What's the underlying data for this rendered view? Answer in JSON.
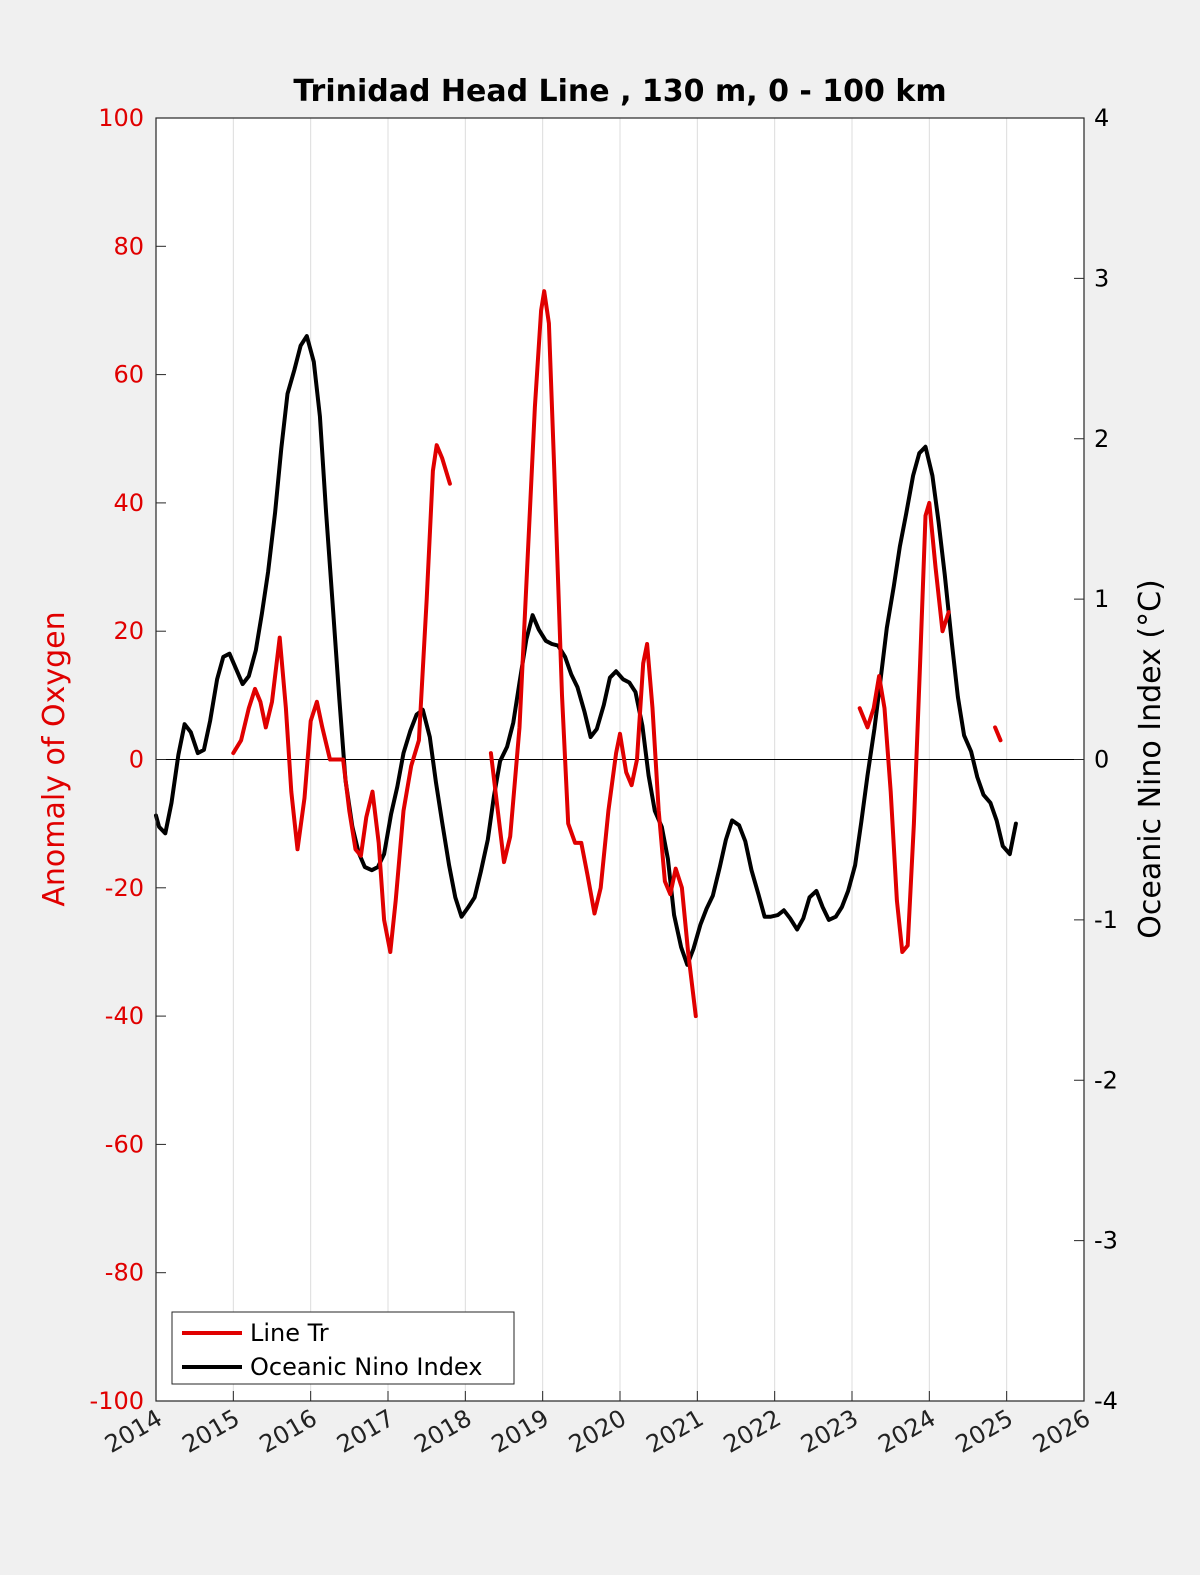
{
  "chart_data": {
    "type": "line",
    "title": "Trinidad Head Line , 130 m, 0 - 100 km",
    "xlabel": "",
    "y_left_label": "Anomaly of Oxygen",
    "y_right_label": "Oceanic Nino Index (°C)",
    "xlim": [
      2014,
      2026
    ],
    "ylim_left": [
      -100,
      100
    ],
    "ylim_right": [
      -4,
      4
    ],
    "x_ticks": [
      "2014",
      "2015",
      "2016",
      "2017",
      "2018",
      "2019",
      "2020",
      "2021",
      "2022",
      "2023",
      "2024",
      "2025",
      "2026"
    ],
    "y_left_ticks": [
      "100",
      "80",
      "60",
      "40",
      "20",
      "0",
      "-20",
      "-40",
      "-60",
      "-80",
      "-100"
    ],
    "y_right_ticks": [
      "4",
      "3",
      "2",
      "1",
      "0",
      "-1",
      "-2",
      "-3",
      "-4"
    ],
    "grid": "vertical",
    "zero_line": true,
    "legend_position": "bottom-left",
    "colors": {
      "line_tr": "#e00000",
      "oni": "#000000",
      "left_axis": "#e00000"
    },
    "series": [
      {
        "name": "Line Tr",
        "axis": "left",
        "color": "#e00000",
        "segments": [
          [
            [
              2015.0,
              1
            ],
            [
              2015.1,
              3
            ],
            [
              2015.2,
              8
            ],
            [
              2015.28,
              11
            ],
            [
              2015.35,
              9
            ],
            [
              2015.42,
              5
            ],
            [
              2015.5,
              9
            ],
            [
              2015.6,
              19
            ],
            [
              2015.68,
              8
            ],
            [
              2015.75,
              -5
            ],
            [
              2015.83,
              -14
            ],
            [
              2015.92,
              -6
            ],
            [
              2016.0,
              6
            ],
            [
              2016.08,
              9
            ],
            [
              2016.15,
              5
            ],
            [
              2016.25,
              0
            ],
            [
              2016.33,
              0
            ],
            [
              2016.42,
              0
            ],
            [
              2016.5,
              -8
            ],
            [
              2016.58,
              -14
            ],
            [
              2016.65,
              -15
            ],
            [
              2016.72,
              -9
            ],
            [
              2016.8,
              -5
            ],
            [
              2016.88,
              -13
            ],
            [
              2016.95,
              -25
            ],
            [
              2017.03,
              -30
            ],
            [
              2017.1,
              -22
            ],
            [
              2017.2,
              -8
            ],
            [
              2017.3,
              -1
            ],
            [
              2017.4,
              3
            ],
            [
              2017.5,
              25
            ],
            [
              2017.58,
              45
            ],
            [
              2017.63,
              49
            ],
            [
              2017.7,
              47
            ],
            [
              2017.8,
              43
            ]
          ],
          [
            [
              2018.33,
              1
            ],
            [
              2018.42,
              -8
            ],
            [
              2018.5,
              -16
            ],
            [
              2018.58,
              -12
            ],
            [
              2018.7,
              5
            ],
            [
              2018.8,
              30
            ],
            [
              2018.9,
              55
            ],
            [
              2018.98,
              70
            ],
            [
              2019.02,
              73
            ],
            [
              2019.08,
              68
            ],
            [
              2019.15,
              45
            ],
            [
              2019.25,
              10
            ],
            [
              2019.33,
              -10
            ],
            [
              2019.42,
              -13
            ],
            [
              2019.5,
              -13
            ],
            [
              2019.58,
              -18
            ],
            [
              2019.67,
              -24
            ],
            [
              2019.75,
              -20
            ],
            [
              2019.85,
              -8
            ],
            [
              2019.95,
              1
            ],
            [
              2020.0,
              4
            ],
            [
              2020.08,
              -2
            ],
            [
              2020.15,
              -4
            ],
            [
              2020.22,
              0
            ],
            [
              2020.3,
              15
            ],
            [
              2020.35,
              18
            ],
            [
              2020.42,
              8
            ],
            [
              2020.5,
              -8
            ],
            [
              2020.58,
              -19
            ],
            [
              2020.65,
              -21
            ],
            [
              2020.72,
              -17
            ],
            [
              2020.8,
              -20
            ],
            [
              2020.88,
              -30
            ],
            [
              2020.98,
              -40
            ]
          ],
          [
            [
              2023.1,
              8
            ],
            [
              2023.2,
              5
            ],
            [
              2023.28,
              8
            ],
            [
              2023.35,
              13
            ],
            [
              2023.42,
              8
            ],
            [
              2023.5,
              -5
            ],
            [
              2023.58,
              -22
            ],
            [
              2023.65,
              -30
            ],
            [
              2023.72,
              -29
            ],
            [
              2023.8,
              -10
            ],
            [
              2023.88,
              15
            ],
            [
              2023.95,
              38
            ],
            [
              2024.0,
              40
            ],
            [
              2024.08,
              30
            ],
            [
              2024.17,
              20
            ],
            [
              2024.25,
              23
            ]
          ],
          [
            [
              2024.85,
              5
            ],
            [
              2024.92,
              3
            ]
          ]
        ]
      },
      {
        "name": "Oceanic Nino Index",
        "axis": "right",
        "color": "#000000",
        "segments": [
          [
            [
              2014.0,
              -0.35
            ],
            [
              2014.04,
              -0.42
            ],
            [
              2014.12,
              -0.46
            ],
            [
              2014.2,
              -0.27
            ],
            [
              2014.29,
              0.03
            ],
            [
              2014.37,
              0.22
            ],
            [
              2014.45,
              0.17
            ],
            [
              2014.54,
              0.04
            ],
            [
              2014.62,
              0.06
            ],
            [
              2014.7,
              0.24
            ],
            [
              2014.79,
              0.5
            ],
            [
              2014.87,
              0.64
            ],
            [
              2014.95,
              0.66
            ],
            [
              2015.04,
              0.56
            ],
            [
              2015.12,
              0.47
            ],
            [
              2015.2,
              0.52
            ],
            [
              2015.29,
              0.68
            ],
            [
              2015.37,
              0.91
            ],
            [
              2015.45,
              1.17
            ],
            [
              2015.54,
              1.54
            ],
            [
              2015.62,
              1.94
            ],
            [
              2015.7,
              2.28
            ],
            [
              2015.79,
              2.43
            ],
            [
              2015.87,
              2.58
            ],
            [
              2015.95,
              2.64
            ],
            [
              2016.04,
              2.48
            ],
            [
              2016.12,
              2.14
            ],
            [
              2016.2,
              1.54
            ],
            [
              2016.29,
              0.93
            ],
            [
              2016.37,
              0.38
            ],
            [
              2016.45,
              -0.13
            ],
            [
              2016.54,
              -0.42
            ],
            [
              2016.62,
              -0.58
            ],
            [
              2016.7,
              -0.67
            ],
            [
              2016.79,
              -0.69
            ],
            [
              2016.87,
              -0.67
            ],
            [
              2016.95,
              -0.59
            ],
            [
              2017.04,
              -0.34
            ],
            [
              2017.12,
              -0.17
            ],
            [
              2017.2,
              0.04
            ],
            [
              2017.29,
              0.18
            ],
            [
              2017.37,
              0.28
            ],
            [
              2017.45,
              0.31
            ],
            [
              2017.54,
              0.14
            ],
            [
              2017.62,
              -0.14
            ],
            [
              2017.7,
              -0.39
            ],
            [
              2017.79,
              -0.66
            ],
            [
              2017.87,
              -0.86
            ],
            [
              2017.95,
              -0.98
            ],
            [
              2018.04,
              -0.92
            ],
            [
              2018.12,
              -0.86
            ],
            [
              2018.2,
              -0.7
            ],
            [
              2018.29,
              -0.5
            ],
            [
              2018.37,
              -0.23
            ],
            [
              2018.45,
              -0.01
            ],
            [
              2018.54,
              0.08
            ],
            [
              2018.62,
              0.23
            ],
            [
              2018.7,
              0.48
            ],
            [
              2018.79,
              0.75
            ],
            [
              2018.87,
              0.9
            ],
            [
              2018.95,
              0.81
            ],
            [
              2019.04,
              0.74
            ],
            [
              2019.12,
              0.72
            ],
            [
              2019.2,
              0.71
            ],
            [
              2019.29,
              0.64
            ],
            [
              2019.37,
              0.53
            ],
            [
              2019.45,
              0.45
            ],
            [
              2019.54,
              0.3
            ],
            [
              2019.62,
              0.14
            ],
            [
              2019.7,
              0.19
            ],
            [
              2019.79,
              0.34
            ],
            [
              2019.87,
              0.51
            ],
            [
              2019.95,
              0.55
            ],
            [
              2020.04,
              0.5
            ],
            [
              2020.12,
              0.48
            ],
            [
              2020.2,
              0.42
            ],
            [
              2020.29,
              0.21
            ],
            [
              2020.37,
              -0.1
            ],
            [
              2020.45,
              -0.32
            ],
            [
              2020.54,
              -0.42
            ],
            [
              2020.62,
              -0.62
            ],
            [
              2020.7,
              -0.97
            ],
            [
              2020.79,
              -1.17
            ],
            [
              2020.87,
              -1.28
            ],
            [
              2020.95,
              -1.18
            ],
            [
              2021.04,
              -1.03
            ],
            [
              2021.12,
              -0.93
            ],
            [
              2021.2,
              -0.85
            ],
            [
              2021.29,
              -0.67
            ],
            [
              2021.37,
              -0.5
            ],
            [
              2021.45,
              -0.38
            ],
            [
              2021.54,
              -0.41
            ],
            [
              2021.62,
              -0.51
            ],
            [
              2021.7,
              -0.69
            ],
            [
              2021.79,
              -0.84
            ],
            [
              2021.87,
              -0.98
            ],
            [
              2021.95,
              -0.98
            ],
            [
              2022.04,
              -0.97
            ],
            [
              2022.12,
              -0.94
            ],
            [
              2022.2,
              -0.99
            ],
            [
              2022.29,
              -1.06
            ],
            [
              2022.37,
              -0.99
            ],
            [
              2022.45,
              -0.86
            ],
            [
              2022.54,
              -0.82
            ],
            [
              2022.62,
              -0.92
            ],
            [
              2022.7,
              -1.0
            ],
            [
              2022.79,
              -0.98
            ],
            [
              2022.87,
              -0.92
            ],
            [
              2022.95,
              -0.82
            ],
            [
              2023.04,
              -0.66
            ],
            [
              2023.12,
              -0.39
            ],
            [
              2023.2,
              -0.1
            ],
            [
              2023.29,
              0.19
            ],
            [
              2023.37,
              0.5
            ],
            [
              2023.45,
              0.82
            ],
            [
              2023.54,
              1.08
            ],
            [
              2023.62,
              1.33
            ],
            [
              2023.7,
              1.53
            ],
            [
              2023.79,
              1.77
            ],
            [
              2023.87,
              1.91
            ],
            [
              2023.95,
              1.95
            ],
            [
              2024.04,
              1.77
            ],
            [
              2024.12,
              1.48
            ],
            [
              2024.2,
              1.15
            ],
            [
              2024.29,
              0.73
            ],
            [
              2024.37,
              0.39
            ],
            [
              2024.45,
              0.15
            ],
            [
              2024.54,
              0.05
            ],
            [
              2024.62,
              -0.11
            ],
            [
              2024.7,
              -0.22
            ],
            [
              2024.79,
              -0.27
            ],
            [
              2024.87,
              -0.38
            ],
            [
              2024.95,
              -0.54
            ],
            [
              2025.04,
              -0.59
            ],
            [
              2025.12,
              -0.4
            ]
          ]
        ]
      }
    ]
  }
}
